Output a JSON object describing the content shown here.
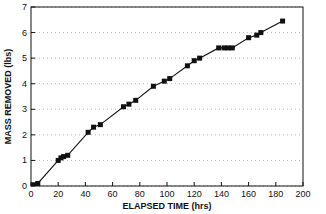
{
  "chart_data": {
    "type": "line",
    "x_label": "ELAPSED TIME (hrs)",
    "y_label": "MASS REMOVED (lbs)",
    "x": [
      0,
      2,
      5,
      20,
      22,
      24,
      27,
      42,
      46,
      51,
      68,
      72,
      77,
      90,
      98,
      102,
      115,
      120,
      124,
      138,
      142,
      145,
      148,
      160,
      166,
      169,
      185
    ],
    "series": [
      {
        "name": "Mass removed",
        "color": "#111111",
        "marker": "square",
        "line_style": "solid",
        "values": [
          0,
          0.05,
          0.1,
          1.0,
          1.1,
          1.15,
          1.2,
          2.1,
          2.3,
          2.4,
          3.1,
          3.2,
          3.35,
          3.9,
          4.1,
          4.2,
          4.7,
          4.9,
          5.0,
          5.4,
          5.4,
          5.4,
          5.4,
          5.8,
          5.9,
          6.0,
          6.45
        ]
      }
    ],
    "xlim": [
      0,
      200
    ],
    "xticks": [
      0,
      20,
      40,
      60,
      80,
      100,
      120,
      140,
      160,
      180,
      200
    ],
    "ylim": [
      0,
      7
    ],
    "yticks": [
      0,
      1,
      2,
      3,
      4,
      5,
      6,
      7
    ],
    "grid": true
  }
}
